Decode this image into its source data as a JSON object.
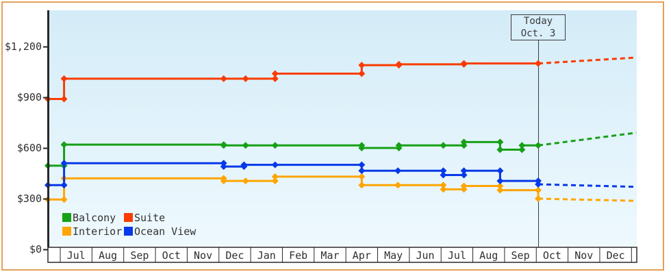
{
  "window": {
    "border_color": "#e2a057",
    "plot_bg_top": "#d4ecf8",
    "plot_bg_bottom": "#eef9fe",
    "axis_color": "#26282a"
  },
  "chart_data": {
    "type": "line",
    "title": "",
    "x_axis": {
      "unit": "months",
      "labels": [
        "Jul",
        "Aug",
        "Sep",
        "Oct",
        "Nov",
        "Dec",
        "Jan",
        "Feb",
        "Mar",
        "Apr",
        "May",
        "Jun",
        "Jul",
        "Aug",
        "Sep",
        "Oct",
        "Nov",
        "Dec"
      ]
    },
    "y_axis": {
      "tick_values": [
        0,
        300,
        600,
        900,
        1200
      ],
      "tick_labels": [
        "$0",
        "$300",
        "$600",
        "$900",
        "$1,200"
      ],
      "ylim": [
        0,
        1450
      ],
      "grid": false
    },
    "today": {
      "line1": "Today",
      "line2": "Oct. 3",
      "t": 15.06
    },
    "legend_position": "bottom-left",
    "series": [
      {
        "name": "Balcony",
        "color": "#16a016",
        "solid": [
          [
            -0.39,
            495
          ],
          [
            0.12,
            495
          ],
          [
            0.12,
            620
          ],
          [
            5.15,
            620
          ],
          [
            5.15,
            615
          ],
          [
            5.84,
            615
          ],
          [
            6.77,
            615
          ],
          [
            9.5,
            615
          ],
          [
            9.5,
            600
          ],
          [
            10.67,
            600
          ],
          [
            10.67,
            615
          ],
          [
            12.07,
            615
          ],
          [
            12.72,
            615
          ],
          [
            12.72,
            635
          ],
          [
            13.86,
            635
          ],
          [
            13.86,
            590
          ],
          [
            14.55,
            590
          ],
          [
            14.55,
            615
          ],
          [
            15.06,
            615
          ]
        ],
        "projection_dashed": [
          [
            15.06,
            615
          ],
          [
            18.15,
            690
          ]
        ]
      },
      {
        "name": "Suite",
        "color": "#fa3c00",
        "solid": [
          [
            -0.39,
            890
          ],
          [
            0.12,
            890
          ],
          [
            0.12,
            1010
          ],
          [
            5.15,
            1010
          ],
          [
            5.84,
            1010
          ],
          [
            6.77,
            1010
          ],
          [
            6.77,
            1040
          ],
          [
            9.5,
            1040
          ],
          [
            9.5,
            1090
          ],
          [
            10.67,
            1090
          ],
          [
            10.67,
            1095
          ],
          [
            12.72,
            1095
          ],
          [
            12.72,
            1100
          ],
          [
            15.06,
            1100
          ]
        ],
        "projection_dashed": [
          [
            15.06,
            1100
          ],
          [
            18.15,
            1135
          ]
        ]
      },
      {
        "name": "Interior",
        "color": "#ffa502",
        "solid": [
          [
            -0.39,
            295
          ],
          [
            0.12,
            295
          ],
          [
            0.12,
            420
          ],
          [
            5.15,
            420
          ],
          [
            5.15,
            405
          ],
          [
            5.84,
            405
          ],
          [
            6.77,
            405
          ],
          [
            6.77,
            430
          ],
          [
            9.5,
            430
          ],
          [
            9.5,
            380
          ],
          [
            10.64,
            380
          ],
          [
            12.07,
            380
          ],
          [
            12.07,
            355
          ],
          [
            12.72,
            355
          ],
          [
            12.72,
            375
          ],
          [
            13.86,
            375
          ],
          [
            13.86,
            350
          ],
          [
            15.06,
            350
          ],
          [
            15.06,
            300
          ]
        ],
        "projection_dashed": [
          [
            15.06,
            300
          ],
          [
            18.15,
            287
          ]
        ]
      },
      {
        "name": "Ocean View",
        "color": "#0739e8",
        "solid": [
          [
            -0.39,
            380
          ],
          [
            0.12,
            380
          ],
          [
            0.12,
            510
          ],
          [
            5.15,
            510
          ],
          [
            5.15,
            490
          ],
          [
            5.79,
            490
          ],
          [
            5.79,
            500
          ],
          [
            6.77,
            500
          ],
          [
            9.5,
            500
          ],
          [
            9.5,
            465
          ],
          [
            10.64,
            465
          ],
          [
            12.07,
            465
          ],
          [
            12.07,
            440
          ],
          [
            12.72,
            440
          ],
          [
            12.72,
            465
          ],
          [
            13.86,
            465
          ],
          [
            13.86,
            405
          ],
          [
            15.06,
            405
          ],
          [
            15.06,
            385
          ]
        ],
        "projection_dashed": [
          [
            15.06,
            385
          ],
          [
            18.15,
            370
          ]
        ]
      }
    ]
  }
}
